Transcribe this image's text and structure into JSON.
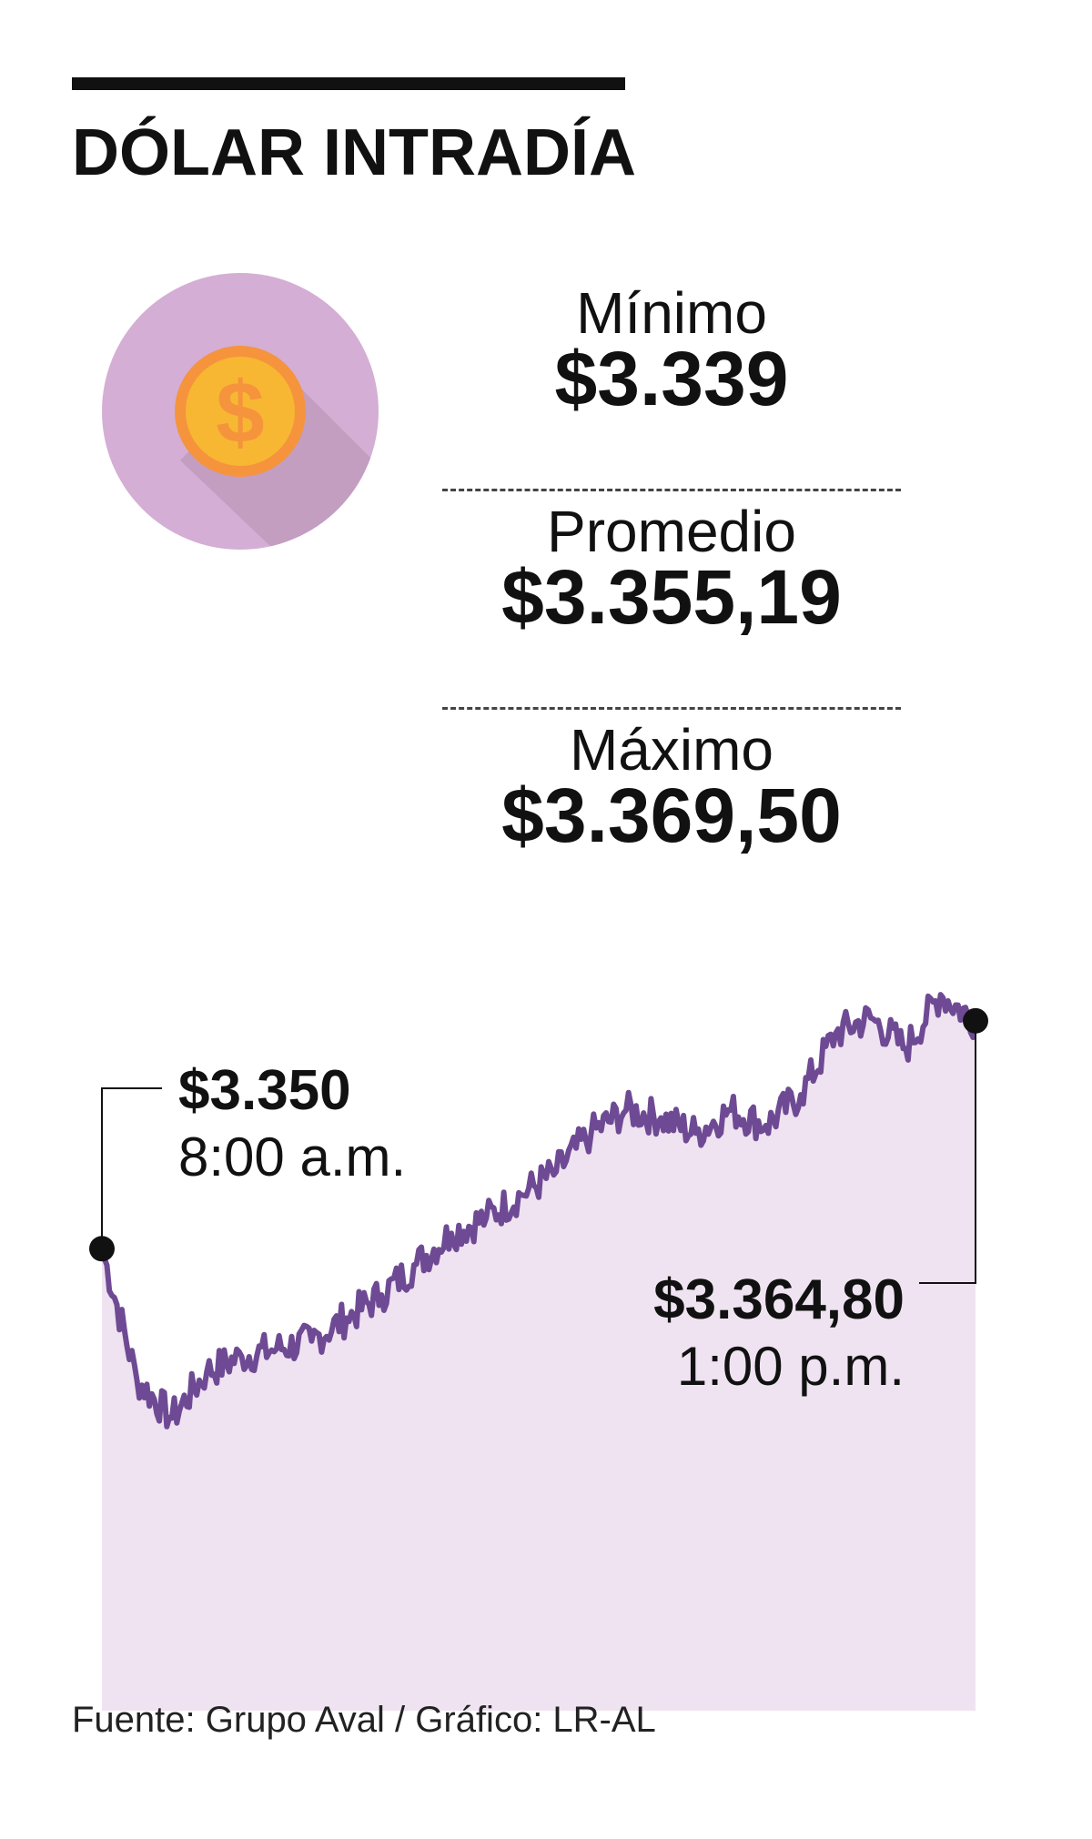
{
  "title": "DÓLAR INTRADÍA",
  "stats": [
    {
      "label": "Mínimo",
      "value": "$3.339"
    },
    {
      "label": "Promedio",
      "value": "$3.355,19"
    },
    {
      "label": "Máximo",
      "value": "$3.369,50"
    }
  ],
  "icon": "dollar-coin-icon",
  "colors": {
    "circle": "#d4aed4",
    "coin_outer": "#f5943d",
    "coin_inner": "#f7b733",
    "line": "#6f4a94",
    "area": "#efe3f1"
  },
  "annotations": {
    "start": {
      "value": "$3.350",
      "time": "8:00 a.m."
    },
    "end": {
      "value": "$3.364,80",
      "time": "1:00 p.m."
    }
  },
  "source": "Fuente: Grupo Aval / Gráfico: LR-AL",
  "chart_data": {
    "type": "area",
    "x": [
      "8:00",
      "8:12",
      "8:24",
      "8:36",
      "8:48",
      "9:00",
      "9:12",
      "9:24",
      "9:36",
      "9:48",
      "10:00",
      "10:12",
      "10:24",
      "10:36",
      "10:48",
      "11:00",
      "11:12",
      "11:24",
      "11:36",
      "11:48",
      "12:00",
      "12:12",
      "12:24",
      "12:36",
      "12:48",
      "13:00"
    ],
    "values": [
      3350,
      3341.5,
      3339,
      3342,
      3343,
      3343.5,
      3344,
      3345.5,
      3347,
      3349,
      3351,
      3352,
      3353.5,
      3355,
      3357.5,
      3359,
      3358.5,
      3357.5,
      3359,
      3358,
      3360,
      3364,
      3365,
      3363,
      3366.5,
      3364.8
    ],
    "ylim": [
      3320,
      3372
    ]
  }
}
